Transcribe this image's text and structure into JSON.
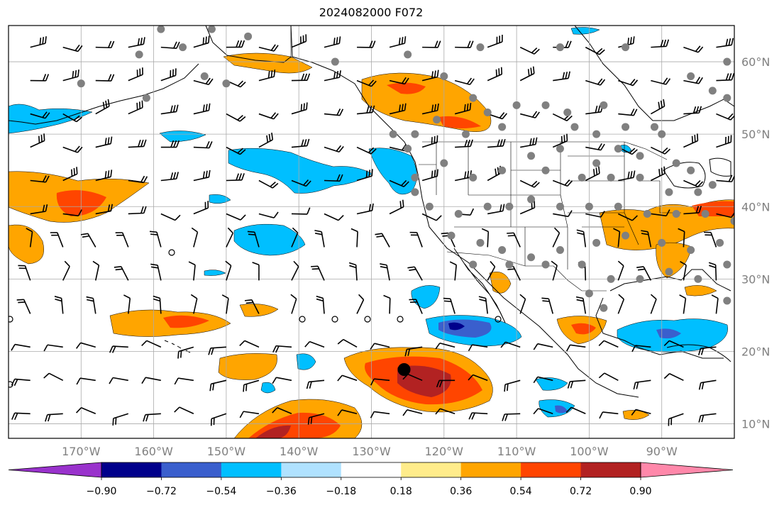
{
  "title": "2024082000 F072",
  "map": {
    "longitude_labels": [
      "170°W",
      "160°W",
      "150°W",
      "140°W",
      "130°W",
      "120°W",
      "110°W",
      "100°W",
      "90°W"
    ],
    "longitude_values": [
      -170,
      -160,
      -150,
      -140,
      -130,
      -120,
      -110,
      -100,
      -90
    ],
    "latitude_labels": [
      "10°N",
      "20°N",
      "30°N",
      "40°N",
      "50°N",
      "60°N"
    ],
    "latitude_values": [
      10,
      20,
      30,
      40,
      50,
      60
    ],
    "extent": {
      "lon_min": -180,
      "lon_max": -80,
      "lat_min": 8,
      "lat_max": 65
    },
    "gridlines": true
  },
  "colorbar": {
    "tick_labels": [
      "−0.90",
      "−0.72",
      "−0.54",
      "−0.36",
      "−0.18",
      "0.18",
      "0.36",
      "0.54",
      "0.72",
      "0.90"
    ],
    "levels": [
      -0.9,
      -0.72,
      -0.54,
      -0.36,
      -0.18,
      0.18,
      0.36,
      0.54,
      0.72,
      0.9
    ],
    "colors": [
      "#9932cc",
      "#00008b",
      "#3a5fcd",
      "#00bfff",
      "#b0e2ff",
      "#ffffff",
      "#ffec8b",
      "#ffa500",
      "#ff4500",
      "#b22222",
      "#ff88aa"
    ]
  },
  "markers": {
    "station_color": "#808080",
    "highlight": {
      "lon": -125.5,
      "lat": 17.5,
      "color": "#000000"
    }
  }
}
